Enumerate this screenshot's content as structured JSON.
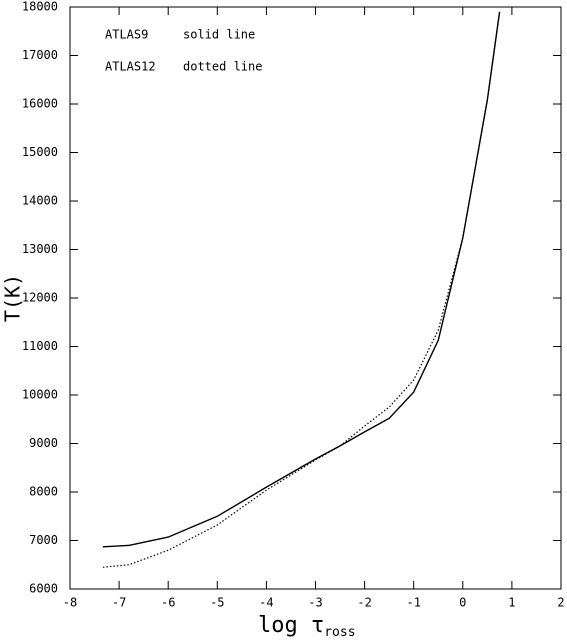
{
  "chart_data": {
    "type": "line",
    "x_label": "log τ",
    "x_label_subscript": "ross",
    "y_label": "T(K)",
    "xlim": [
      -8,
      2
    ],
    "xticks": [
      -8,
      -7,
      -6,
      -5,
      -4,
      -3,
      -2,
      -1,
      0,
      1,
      2
    ],
    "ylim": [
      6000,
      18000
    ],
    "yticks": [
      6000,
      7000,
      8000,
      9000,
      10000,
      11000,
      12000,
      13000,
      14000,
      15000,
      16000,
      17000,
      18000
    ],
    "grid": false,
    "series": [
      {
        "name": "ATLAS9",
        "line_label": "solid line",
        "color": "#000000",
        "dash": "solid",
        "x": [
          -7.33,
          -6.8,
          -6,
          -5,
          -4,
          -3,
          -2.5,
          -2,
          -1.5,
          -1,
          -0.5,
          0,
          0.5,
          0.75
        ],
        "values": [
          6870,
          6900,
          7070,
          7500,
          8100,
          8680,
          8950,
          9240,
          9520,
          10060,
          11130,
          13240,
          16080,
          17900
        ]
      },
      {
        "name": "ATLAS12",
        "line_label": "dotted line",
        "color": "#000000",
        "dash": "dotted",
        "x": [
          -7.33,
          -6.8,
          -6,
          -5,
          -4,
          -3,
          -2.5,
          -2,
          -1.5,
          -1,
          -0.5,
          0,
          0.5,
          0.75
        ],
        "values": [
          6450,
          6500,
          6800,
          7320,
          8040,
          8660,
          8950,
          9360,
          9750,
          10310,
          11340,
          13240,
          16080,
          17900
        ]
      }
    ]
  }
}
